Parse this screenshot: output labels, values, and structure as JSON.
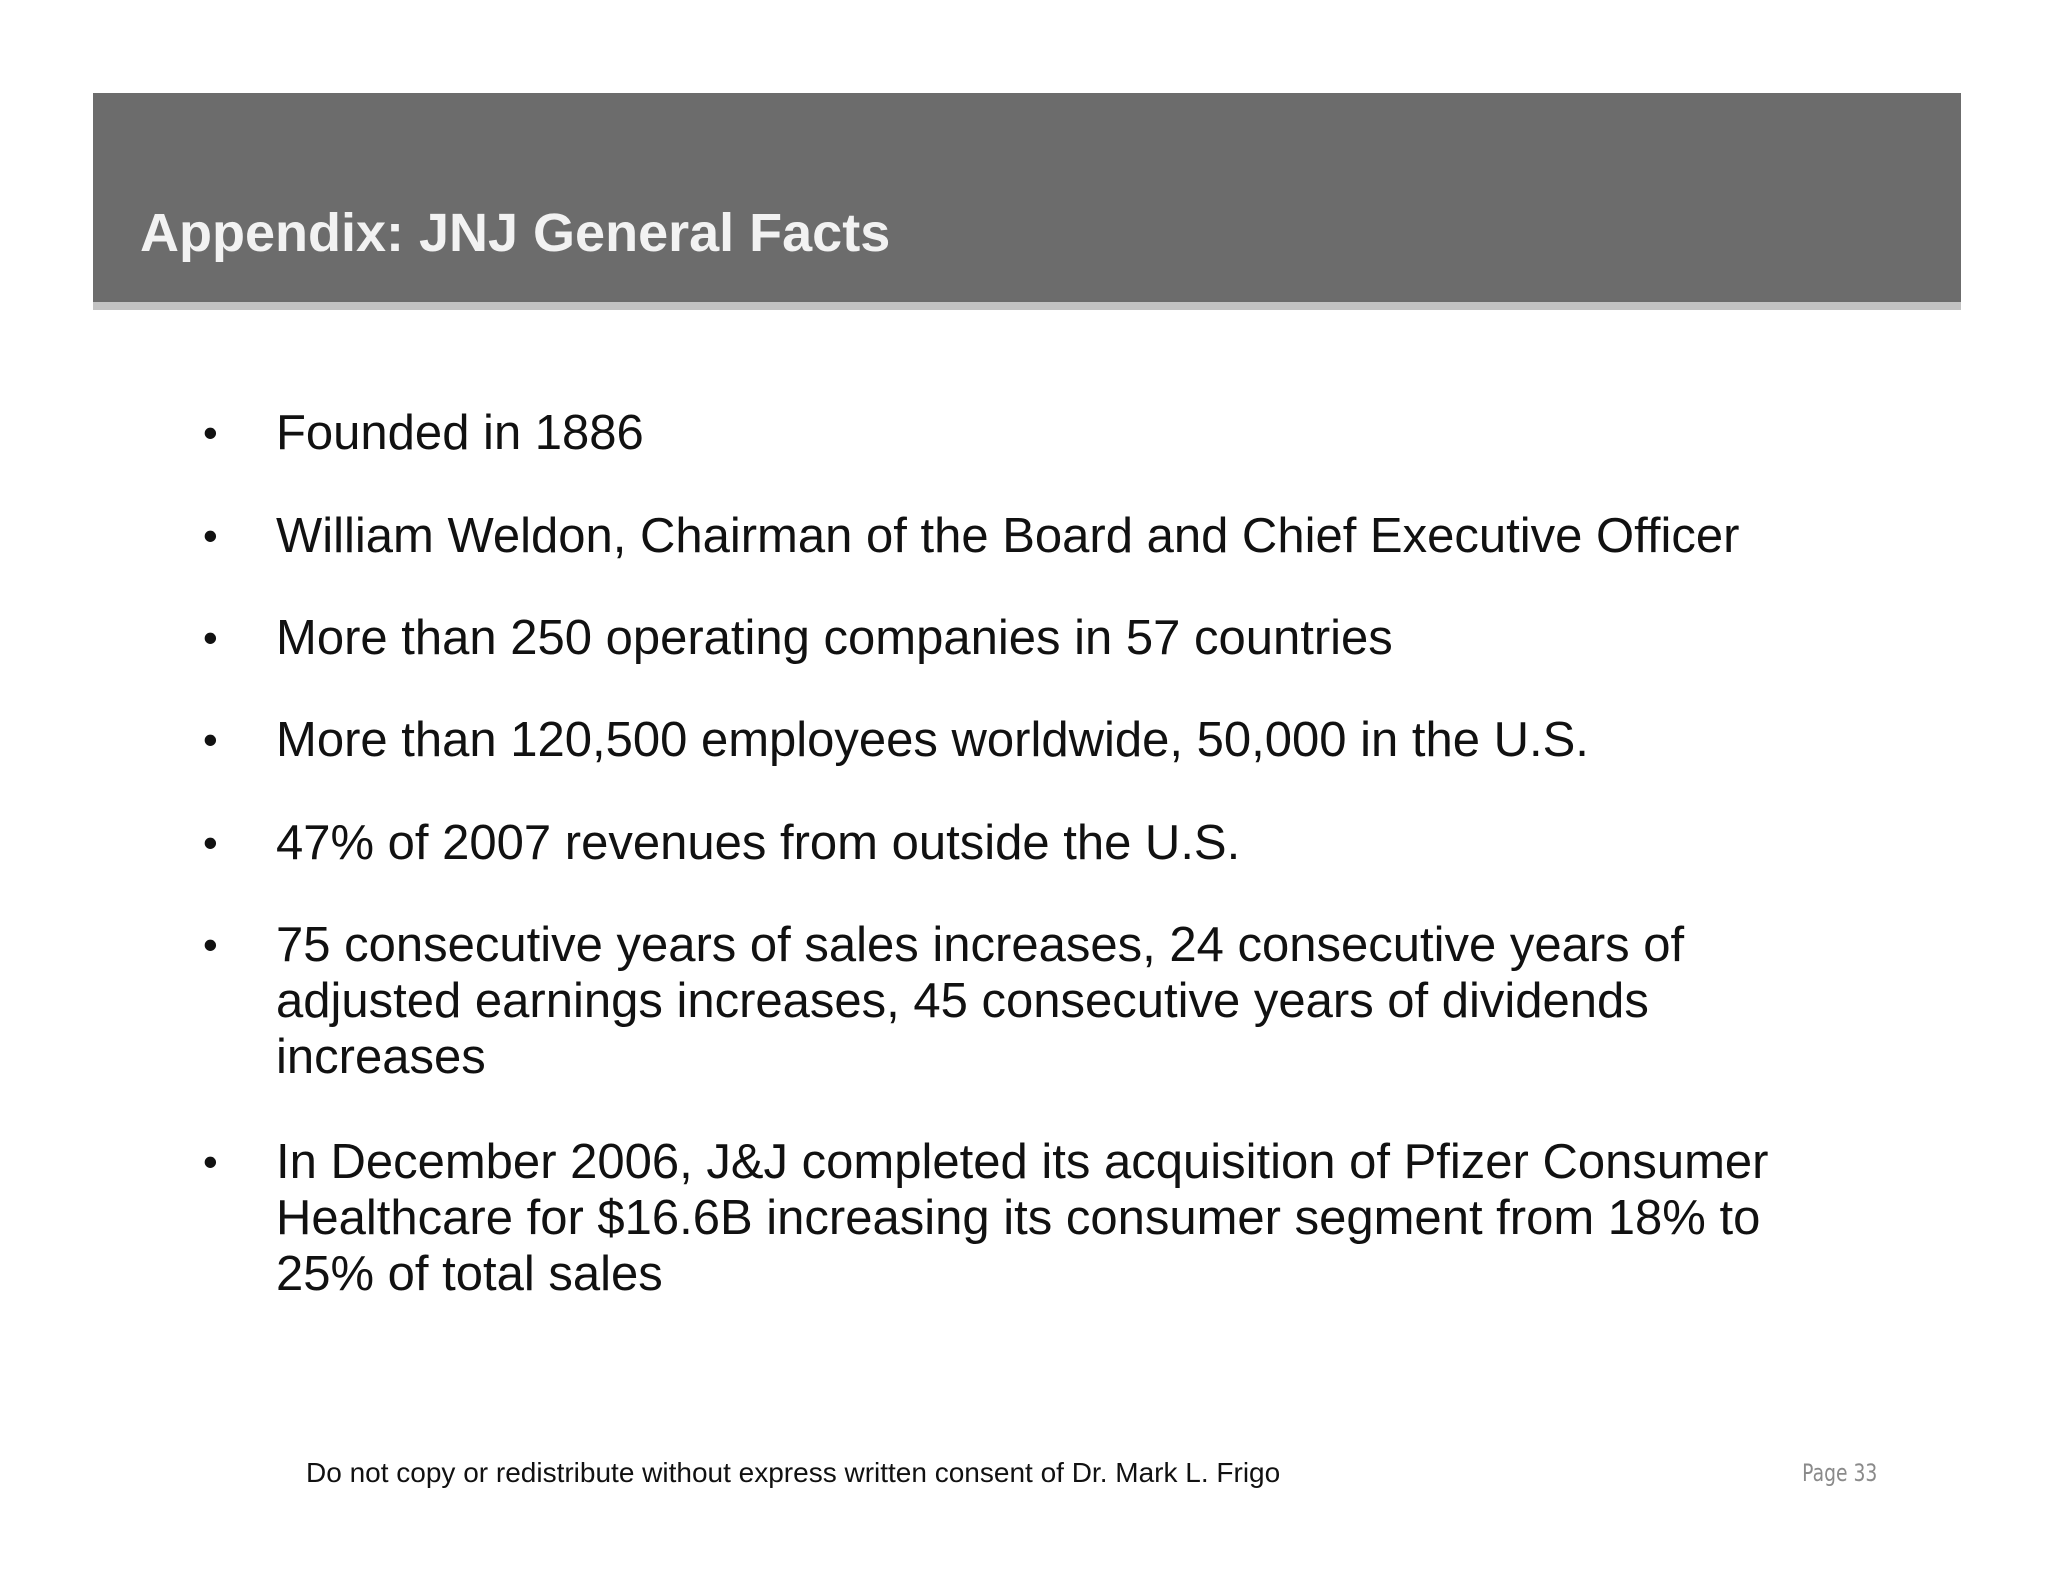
{
  "slide": {
    "title": "Appendix:  JNJ General Facts",
    "bullet_glyph": "•",
    "bullets": [
      "Founded in 1886",
      "William Weldon, Chairman of the Board and Chief Executive Officer",
      "More than 250 operating companies in 57 countries",
      "More than 120,500 employees worldwide, 50,000 in the U.S.",
      "47% of 2007 revenues from outside the U.S.",
      "75 consecutive years of sales increases, 24 consecutive years of adjusted earnings increases, 45 consecutive years of dividends increases",
      "In December 2006, J&J completed its acquisition of Pfizer Consumer Healthcare for $16.6B increasing its consumer segment from 18% to 25% of total sales"
    ]
  },
  "footer": {
    "note": "Do not copy or redistribute without express written consent of Dr. Mark L. Frigo",
    "page_label": "Page  33"
  },
  "colors": {
    "header_bar": "#6c6c6c",
    "header_rule": "#c3c3c3",
    "title_text": "#f2f2f2",
    "body_text": "#111111",
    "page_number": "#8a8a8a"
  }
}
